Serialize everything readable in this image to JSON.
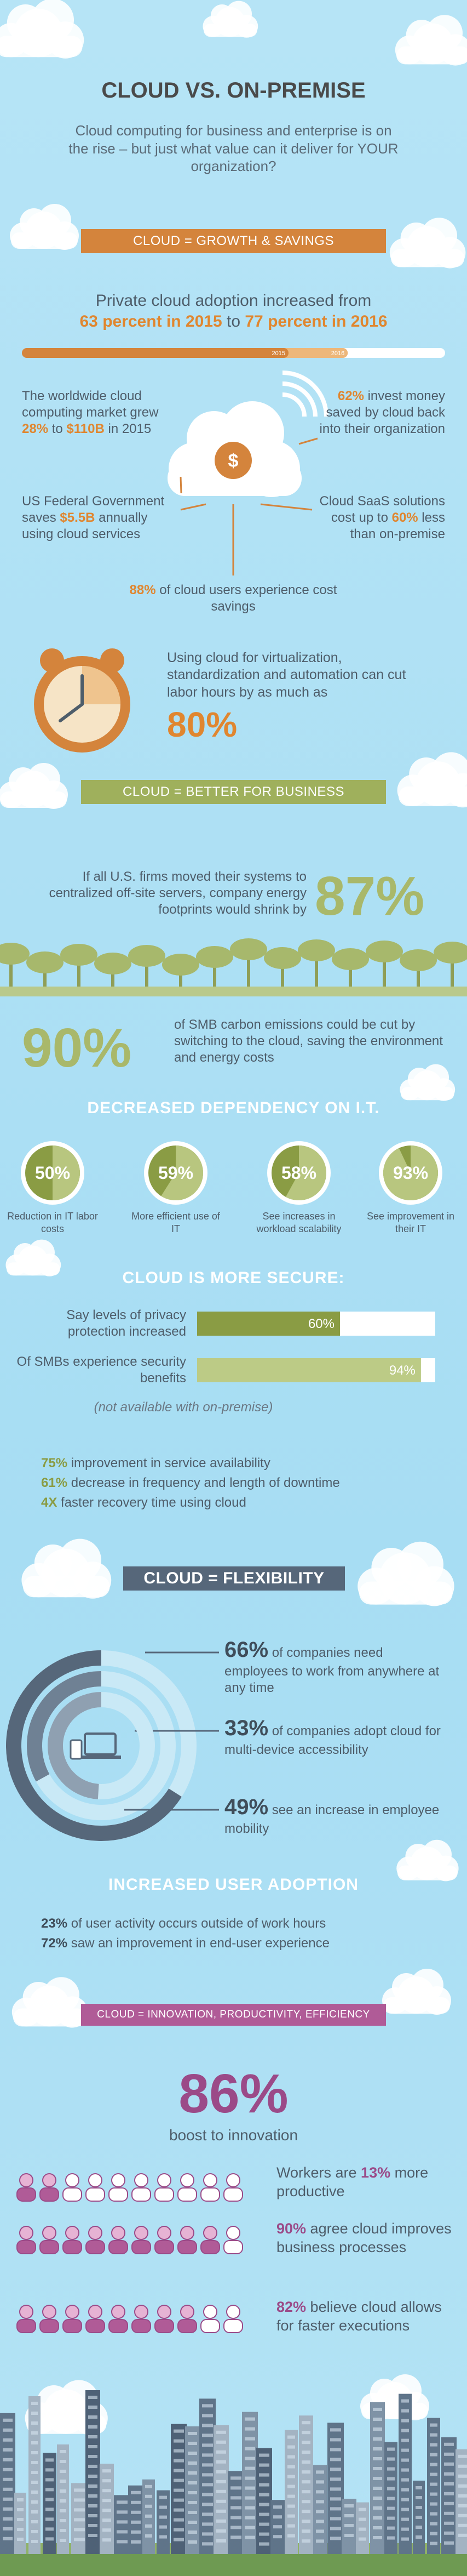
{
  "header": {
    "title": "CLOUD VS. ON-PREMISE",
    "subtitle": "Cloud computing for business and enterprise is on the rise – but just what value can it deliver for YOUR organization?"
  },
  "growth": {
    "banner": "CLOUD = GROWTH & SAVINGS",
    "adoption": {
      "text": "Private cloud adoption increased from",
      "from": "63 percent in 2015",
      "to": "to",
      "until": "77 percent in 2016",
      "xlim": [
        0,
        100
      ],
      "bar": [
        {
          "value": 63,
          "label": "2015"
        },
        {
          "value": 77,
          "label": "2016"
        }
      ]
    },
    "market": [
      "The worldwide cloud computing market grew ",
      "28%",
      " to ",
      "$110B",
      " in 2015"
    ],
    "invest": [
      "62%",
      " invest money saved by cloud back into their organization"
    ],
    "federal": [
      "US Federal Government saves ",
      "$5.5B",
      " annually using cloud services"
    ],
    "saas": [
      "Cloud SaaS solutions cost up to ",
      "60%",
      " less than on-premise"
    ],
    "savings": [
      "88%",
      " of cloud users experience cost savings"
    ],
    "labor": {
      "text": "Using cloud for virtualization, standardization and automation can cut labor hours by as much as",
      "figure": "80%"
    }
  },
  "business": {
    "banner": "CLOUD = BETTER FOR BUSINESS",
    "energy": {
      "text": "If all U.S. firms moved their systems to centralized off-site servers, company energy footprints would shrink by",
      "figure": "87%"
    },
    "carbon": {
      "figure": "90%",
      "text": "of SMB carbon emissions could be cut by switching to the cloud, saving the environment and energy costs"
    }
  },
  "dependency": {
    "title": "DECREASED DEPENDENCY ON I.T.",
    "items": [
      {
        "value": 50,
        "label": "50%",
        "caption": "Reduction in IT labor costs"
      },
      {
        "value": 59,
        "label": "59%",
        "caption": "More efficient use of IT"
      },
      {
        "value": 58,
        "label": "58%",
        "caption": "See increases in workload scalability"
      },
      {
        "value": 93,
        "label": "93%",
        "caption": "See improvement in their IT"
      }
    ]
  },
  "security": {
    "title": "CLOUD IS MORE SECURE:",
    "xlim": [
      0,
      100
    ],
    "bars": [
      {
        "text": "Say levels of privacy protection increased",
        "value": 60,
        "label": "60%"
      },
      {
        "text": "Of SMBs experience security benefits",
        "value": 94,
        "label": "94%"
      }
    ],
    "note": "(not available with on-premise)",
    "stats": [
      [
        "75%",
        " improvement in service availability"
      ],
      [
        "61%",
        " decrease in frequency and length of downtime"
      ],
      [
        "4X",
        " faster recovery time using cloud"
      ]
    ]
  },
  "flexibility": {
    "banner": "CLOUD = FLEXIBILITY",
    "stats": [
      {
        "value": 66,
        "label": "66%",
        "text": "of companies need employees to work from anywhere at any time"
      },
      {
        "value": 33,
        "label": "33%",
        "text": "of companies adopt cloud for multi-device accessibility"
      },
      {
        "value": 49,
        "label": "49%",
        "text": "see an increase in employee mobility"
      }
    ]
  },
  "user_adoption": {
    "title": "INCREASED USER ADOPTION",
    "stats": [
      [
        "23%",
        " of user activity occurs outside of work hours"
      ],
      [
        "72%",
        " saw an improvement in end-user experience"
      ]
    ]
  },
  "innovation": {
    "banner": "CLOUD = INNOVATION, PRODUCTIVITY, EFFICIENCY",
    "figure": "86%",
    "caption": "boost to innovation",
    "stats": [
      [
        "Workers are ",
        "13%",
        " more productive"
      ],
      [
        "90%",
        " agree cloud improves business processes"
      ],
      [
        "82%",
        " believe cloud allows for faster executions"
      ]
    ]
  }
}
